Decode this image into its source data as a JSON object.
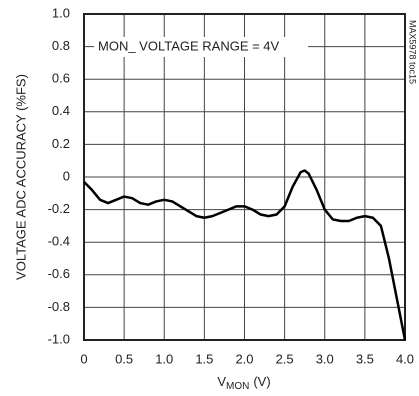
{
  "chart_data": {
    "type": "line",
    "ylabel": "VOLTAGE ADC ACCURACY (%FS)",
    "xlabel": {
      "main": "V",
      "sub": "MON",
      "unit": "(V)"
    },
    "annotation": "MON_ VOLTAGE RANGE = 4V",
    "side_note": "MAX5978 toc15",
    "x": [
      0,
      0.1,
      0.2,
      0.3,
      0.4,
      0.5,
      0.6,
      0.7,
      0.8,
      0.9,
      1.0,
      1.1,
      1.2,
      1.3,
      1.4,
      1.5,
      1.6,
      1.7,
      1.8,
      1.9,
      2.0,
      2.1,
      2.2,
      2.3,
      2.4,
      2.5,
      2.6,
      2.7,
      2.75,
      2.8,
      2.9,
      3.0,
      3.1,
      3.2,
      3.3,
      3.4,
      3.5,
      3.6,
      3.7,
      3.8,
      3.9,
      4.0
    ],
    "series": [
      {
        "name": "accuracy",
        "color": "#000000",
        "values": [
          -0.03,
          -0.08,
          -0.14,
          -0.16,
          -0.14,
          -0.12,
          -0.13,
          -0.16,
          -0.17,
          -0.15,
          -0.14,
          -0.15,
          -0.18,
          -0.21,
          -0.24,
          -0.25,
          -0.24,
          -0.22,
          -0.2,
          -0.18,
          -0.18,
          -0.2,
          -0.23,
          -0.24,
          -0.23,
          -0.18,
          -0.06,
          0.03,
          0.04,
          0.02,
          -0.08,
          -0.2,
          -0.26,
          -0.27,
          -0.27,
          -0.25,
          -0.24,
          -0.25,
          -0.3,
          -0.5,
          -0.75,
          -1.0
        ]
      }
    ],
    "xlim": [
      0,
      4
    ],
    "ylim": [
      -1,
      1
    ],
    "xticks": [
      0,
      0.5,
      {
        "value": 1,
        "label": "1.0"
      },
      1.5,
      {
        "value": 2,
        "label": "2.0"
      },
      2.5,
      {
        "value": 3,
        "label": "3.0"
      },
      3.5,
      {
        "value": 4,
        "label": "4.0"
      }
    ],
    "yticks": [
      {
        "value": -1,
        "label": "-1.0"
      },
      -0.8,
      -0.6,
      -0.4,
      -0.2,
      0,
      0.2,
      0.4,
      0.6,
      0.8,
      {
        "value": 1,
        "label": "1.0"
      }
    ],
    "grid": true
  }
}
